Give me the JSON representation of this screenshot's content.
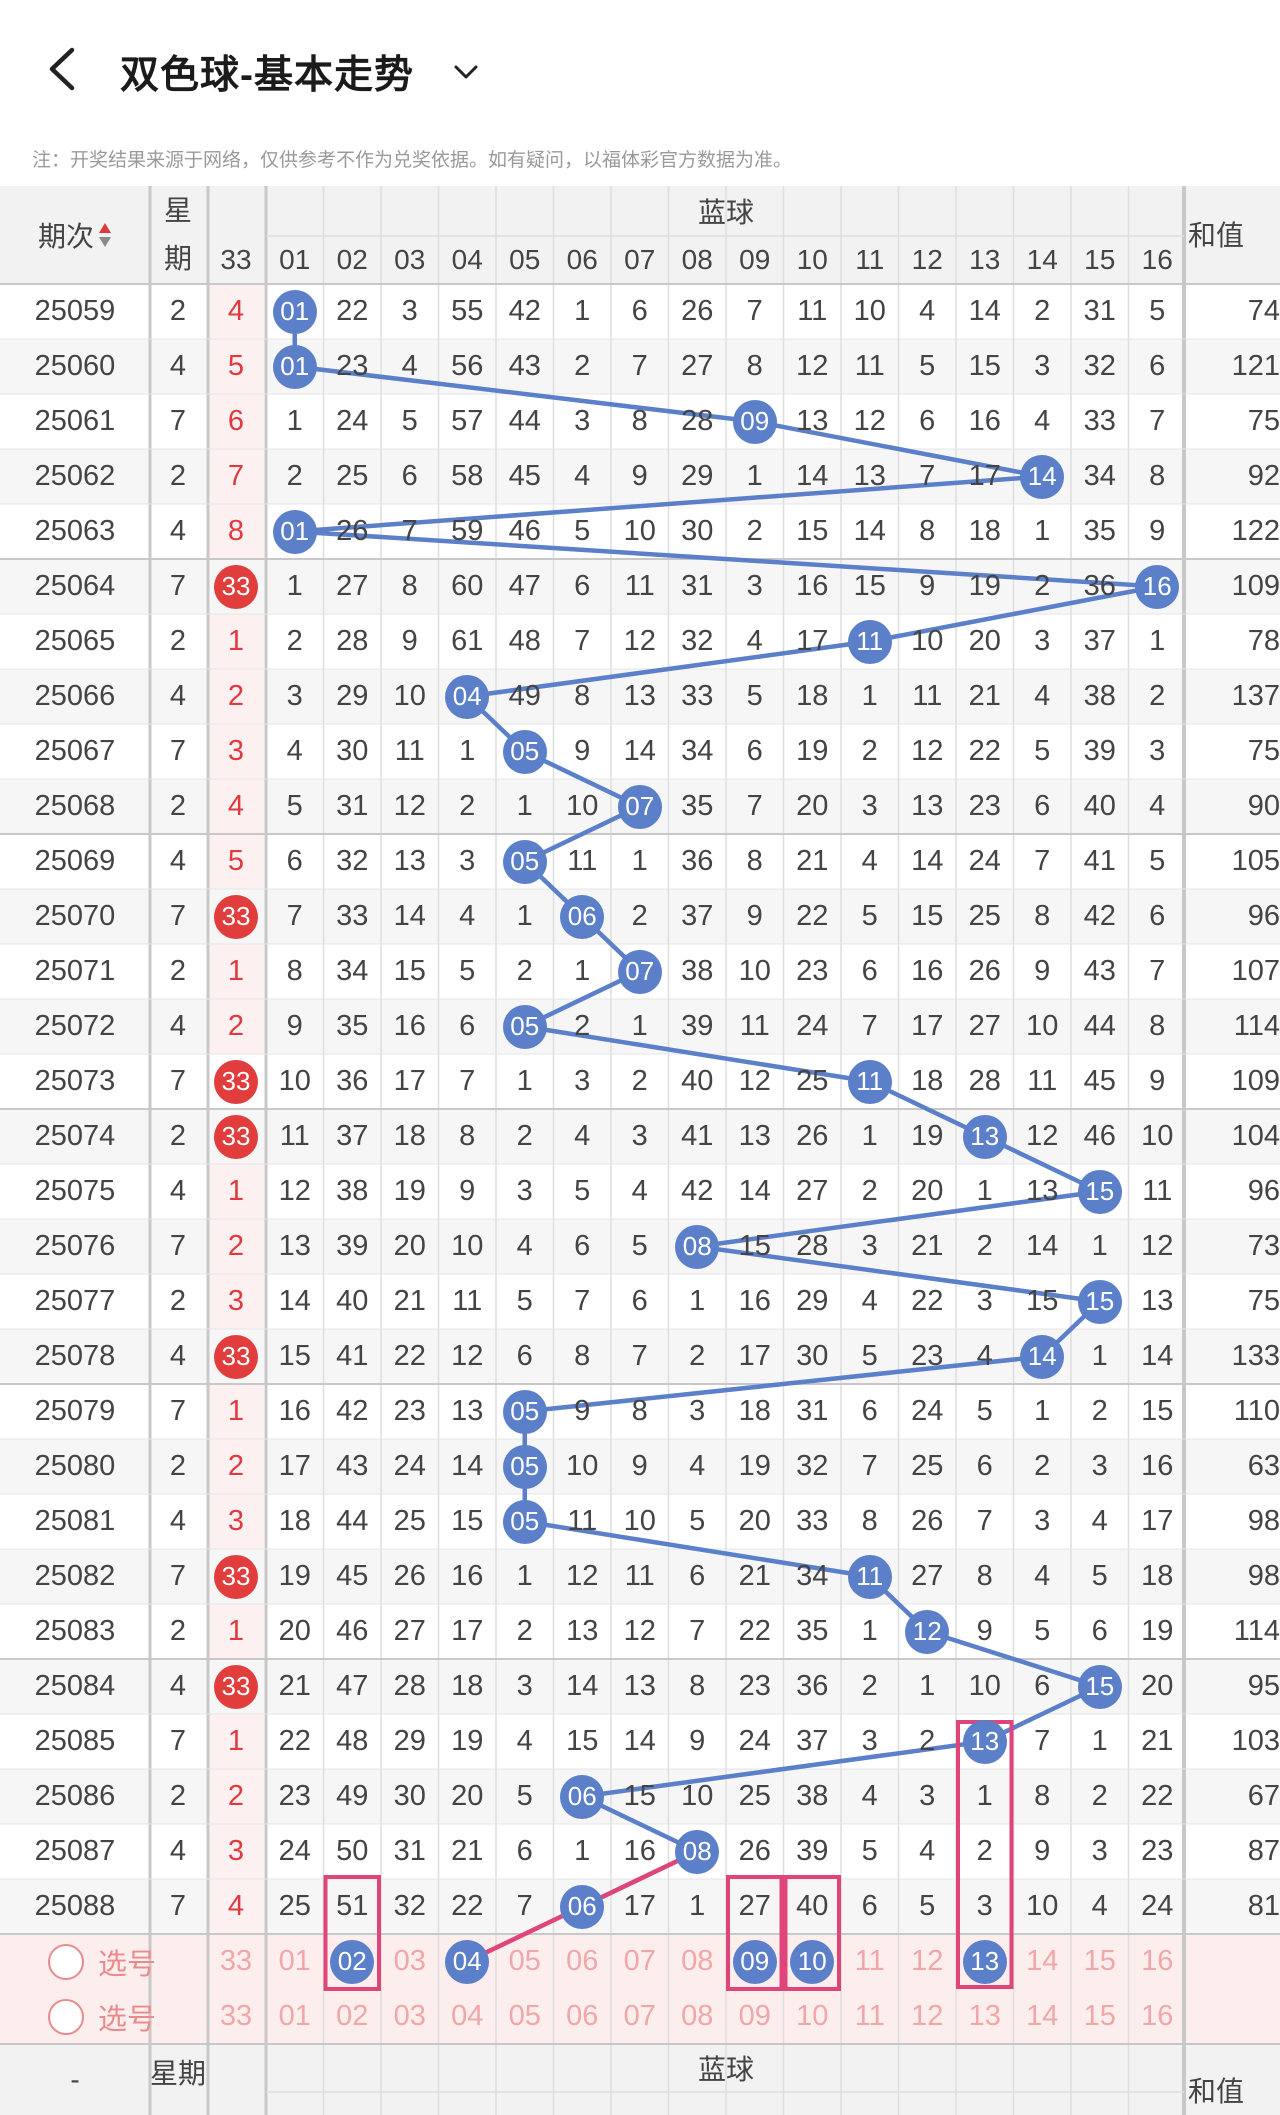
{
  "header": {
    "title": "双色球-基本走势",
    "disclaimer": "注：开奖结果来源于网络，仅供参考不作为兑奖依据。如有疑问，以福体彩官方数据为准。"
  },
  "table": {
    "col_period": "期次",
    "col_week": "星期",
    "col_33": "33",
    "col_blue": "蓝球",
    "col_sum": "和值",
    "blue_numbers": [
      "01",
      "02",
      "03",
      "04",
      "05",
      "06",
      "07",
      "08",
      "09",
      "10",
      "11",
      "12",
      "13",
      "14",
      "15",
      "16"
    ],
    "rows": [
      {
        "period": "25059",
        "week": "2",
        "c33": "4",
        "blue": [
          1,
          22,
          3,
          55,
          42,
          1,
          6,
          26,
          7,
          11,
          10,
          4,
          14,
          2,
          31,
          5
        ],
        "hit": 1,
        "sum": "74"
      },
      {
        "period": "25060",
        "week": "4",
        "c33": "5",
        "blue": [
          1,
          23,
          4,
          56,
          43,
          2,
          7,
          27,
          8,
          12,
          11,
          5,
          15,
          3,
          32,
          6
        ],
        "hit": 1,
        "sum": "121"
      },
      {
        "period": "25061",
        "week": "7",
        "c33": "6",
        "blue": [
          1,
          24,
          5,
          57,
          44,
          3,
          8,
          28,
          9,
          13,
          12,
          6,
          16,
          4,
          33,
          7
        ],
        "hit": 9,
        "sum": "75"
      },
      {
        "period": "25062",
        "week": "2",
        "c33": "7",
        "blue": [
          2,
          25,
          6,
          58,
          45,
          4,
          9,
          29,
          1,
          14,
          13,
          7,
          17,
          14,
          34,
          8
        ],
        "hit": 14,
        "sum": "92"
      },
      {
        "period": "25063",
        "week": "4",
        "c33": "8",
        "blue": [
          1,
          26,
          7,
          59,
          46,
          5,
          10,
          30,
          2,
          15,
          14,
          8,
          18,
          1,
          35,
          9
        ],
        "hit": 1,
        "sum": "122"
      },
      {
        "period": "25064",
        "week": "7",
        "c33": "33",
        "blue": [
          1,
          27,
          8,
          60,
          47,
          6,
          11,
          31,
          3,
          16,
          15,
          9,
          19,
          2,
          36,
          16
        ],
        "hit": 16,
        "sum": "109"
      },
      {
        "period": "25065",
        "week": "2",
        "c33": "1",
        "blue": [
          2,
          28,
          9,
          61,
          48,
          7,
          12,
          32,
          4,
          17,
          11,
          10,
          20,
          3,
          37,
          1
        ],
        "hit": 11,
        "sum": "78"
      },
      {
        "period": "25066",
        "week": "4",
        "c33": "2",
        "blue": [
          3,
          29,
          10,
          4,
          49,
          8,
          13,
          33,
          5,
          18,
          1,
          11,
          21,
          4,
          38,
          2
        ],
        "hit": 4,
        "sum": "137"
      },
      {
        "period": "25067",
        "week": "7",
        "c33": "3",
        "blue": [
          4,
          30,
          11,
          1,
          5,
          9,
          14,
          34,
          6,
          19,
          2,
          12,
          22,
          5,
          39,
          3
        ],
        "hit": 5,
        "sum": "75"
      },
      {
        "period": "25068",
        "week": "2",
        "c33": "4",
        "blue": [
          5,
          31,
          12,
          2,
          1,
          10,
          7,
          35,
          7,
          20,
          3,
          13,
          23,
          6,
          40,
          4
        ],
        "hit": 7,
        "sum": "90"
      },
      {
        "period": "25069",
        "week": "4",
        "c33": "5",
        "blue": [
          6,
          32,
          13,
          3,
          5,
          11,
          1,
          36,
          8,
          21,
          4,
          14,
          24,
          7,
          41,
          5
        ],
        "hit": 5,
        "sum": "105"
      },
      {
        "period": "25070",
        "week": "7",
        "c33": "33",
        "blue": [
          7,
          33,
          14,
          4,
          1,
          6,
          2,
          37,
          9,
          22,
          5,
          15,
          25,
          8,
          42,
          6
        ],
        "hit": 6,
        "sum": "96"
      },
      {
        "period": "25071",
        "week": "2",
        "c33": "1",
        "blue": [
          8,
          34,
          15,
          5,
          2,
          1,
          7,
          38,
          10,
          23,
          6,
          16,
          26,
          9,
          43,
          7
        ],
        "hit": 7,
        "sum": "107"
      },
      {
        "period": "25072",
        "week": "4",
        "c33": "2",
        "blue": [
          9,
          35,
          16,
          6,
          5,
          2,
          1,
          39,
          11,
          24,
          7,
          17,
          27,
          10,
          44,
          8
        ],
        "hit": 5,
        "sum": "114"
      },
      {
        "period": "25073",
        "week": "7",
        "c33": "33",
        "blue": [
          10,
          36,
          17,
          7,
          1,
          3,
          2,
          40,
          12,
          25,
          11,
          18,
          28,
          11,
          45,
          9
        ],
        "hit": 11,
        "sum": "109"
      },
      {
        "period": "25074",
        "week": "2",
        "c33": "33",
        "blue": [
          11,
          37,
          18,
          8,
          2,
          4,
          3,
          41,
          13,
          26,
          1,
          19,
          13,
          12,
          46,
          10
        ],
        "hit": 13,
        "sum": "104"
      },
      {
        "period": "25075",
        "week": "4",
        "c33": "1",
        "blue": [
          12,
          38,
          19,
          9,
          3,
          5,
          4,
          42,
          14,
          27,
          2,
          20,
          1,
          13,
          15,
          11
        ],
        "hit": 15,
        "sum": "96"
      },
      {
        "period": "25076",
        "week": "7",
        "c33": "2",
        "blue": [
          13,
          39,
          20,
          10,
          4,
          6,
          5,
          8,
          15,
          28,
          3,
          21,
          2,
          14,
          1,
          12
        ],
        "hit": 8,
        "sum": "73"
      },
      {
        "period": "25077",
        "week": "2",
        "c33": "3",
        "blue": [
          14,
          40,
          21,
          11,
          5,
          7,
          6,
          1,
          16,
          29,
          4,
          22,
          3,
          15,
          15,
          13
        ],
        "hit": 15,
        "sum": "75"
      },
      {
        "period": "25078",
        "week": "4",
        "c33": "33",
        "blue": [
          15,
          41,
          22,
          12,
          6,
          8,
          7,
          2,
          17,
          30,
          5,
          23,
          4,
          14,
          1,
          14
        ],
        "hit": 14,
        "sum": "133"
      },
      {
        "period": "25079",
        "week": "7",
        "c33": "1",
        "blue": [
          16,
          42,
          23,
          13,
          5,
          9,
          8,
          3,
          18,
          31,
          6,
          24,
          5,
          1,
          2,
          15
        ],
        "hit": 5,
        "sum": "110"
      },
      {
        "period": "25080",
        "week": "2",
        "c33": "2",
        "blue": [
          17,
          43,
          24,
          14,
          5,
          10,
          9,
          4,
          19,
          32,
          7,
          25,
          6,
          2,
          3,
          16
        ],
        "hit": 5,
        "sum": "63"
      },
      {
        "period": "25081",
        "week": "4",
        "c33": "3",
        "blue": [
          18,
          44,
          25,
          15,
          5,
          11,
          10,
          5,
          20,
          33,
          8,
          26,
          7,
          3,
          4,
          17
        ],
        "hit": 5,
        "sum": "98"
      },
      {
        "period": "25082",
        "week": "7",
        "c33": "33",
        "blue": [
          19,
          45,
          26,
          16,
          1,
          12,
          11,
          6,
          21,
          34,
          11,
          27,
          8,
          4,
          5,
          18
        ],
        "hit": 11,
        "sum": "98"
      },
      {
        "period": "25083",
        "week": "2",
        "c33": "1",
        "blue": [
          20,
          46,
          27,
          17,
          2,
          13,
          12,
          7,
          22,
          35,
          1,
          12,
          9,
          5,
          6,
          19
        ],
        "hit": 12,
        "sum": "114"
      },
      {
        "period": "25084",
        "week": "4",
        "c33": "33",
        "blue": [
          21,
          47,
          28,
          18,
          3,
          14,
          13,
          8,
          23,
          36,
          2,
          1,
          10,
          6,
          15,
          20
        ],
        "hit": 15,
        "sum": "95"
      },
      {
        "period": "25085",
        "week": "7",
        "c33": "1",
        "blue": [
          22,
          48,
          29,
          19,
          4,
          15,
          14,
          9,
          24,
          37,
          3,
          2,
          13,
          7,
          1,
          21
        ],
        "hit": 13,
        "sum": "103"
      },
      {
        "period": "25086",
        "week": "2",
        "c33": "2",
        "blue": [
          23,
          49,
          30,
          20,
          5,
          6,
          15,
          10,
          25,
          38,
          4,
          3,
          1,
          8,
          2,
          22
        ],
        "hit": 6,
        "sum": "67"
      },
      {
        "period": "25087",
        "week": "4",
        "c33": "3",
        "blue": [
          24,
          50,
          31,
          21,
          6,
          1,
          16,
          8,
          26,
          39,
          5,
          4,
          2,
          9,
          3,
          23
        ],
        "hit": 8,
        "sum": "87"
      },
      {
        "period": "25088",
        "week": "7",
        "c33": "4",
        "blue": [
          25,
          51,
          32,
          22,
          7,
          6,
          17,
          1,
          27,
          40,
          6,
          5,
          3,
          10,
          4,
          24
        ],
        "hit": 6,
        "sum": "81"
      }
    ],
    "select_label": "选号",
    "select_rows": [
      {
        "c33": "33",
        "selected": [
          2,
          4,
          9,
          10,
          13
        ]
      },
      {
        "c33": "33",
        "selected": []
      }
    ],
    "footer_period": "-",
    "footer_week": "星期",
    "footer_blue": "蓝球",
    "footer_sum": "和值"
  },
  "colors": {
    "blue_ball": "#5b7fc9",
    "red_ball": "#e23d3d",
    "highlight_box": "#e0457a",
    "select_row_bg": "#fdeeee"
  }
}
